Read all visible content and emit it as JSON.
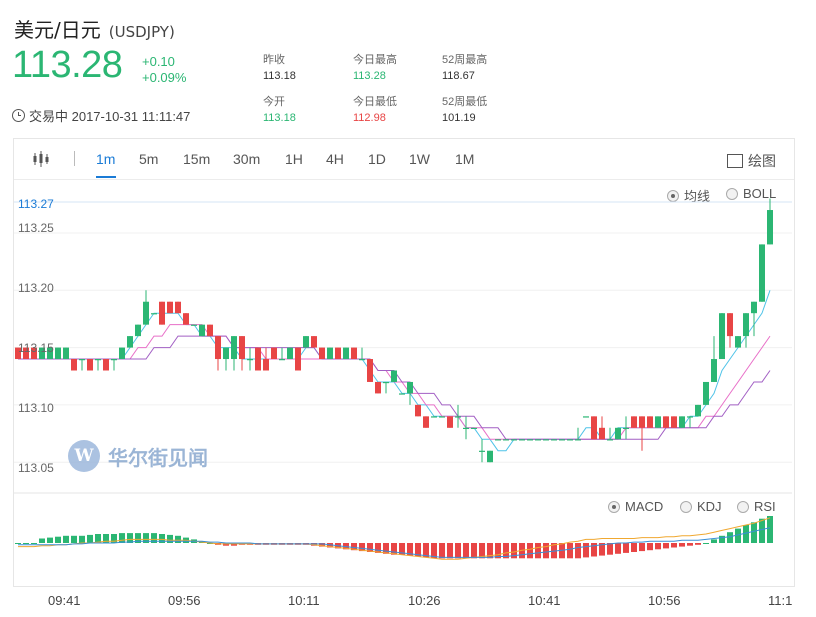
{
  "header": {
    "title": "美元/日元",
    "code": "(USDJPY)",
    "price": "113.28",
    "change": "+0.10",
    "change_pct": "+0.09%",
    "status": "交易中 2017-10-31 11:11:47"
  },
  "stats": [
    {
      "label": "昨收",
      "value": "113.18"
    },
    {
      "label": "今日最高",
      "value": "113.28"
    },
    {
      "label": "52周最高",
      "value": "118.67"
    },
    {
      "label": "今开",
      "value": "113.18"
    },
    {
      "label": "今日最低",
      "value": "112.98"
    },
    {
      "label": "52周最低",
      "value": "101.19"
    }
  ],
  "toolbar": {
    "tabs": [
      "1m",
      "5m",
      "15m",
      "30m",
      "1H",
      "4H",
      "1D",
      "1W",
      "1M"
    ],
    "active_tab": "1m",
    "draw_label": "绘图"
  },
  "indicators": {
    "main": [
      {
        "label": "均线",
        "selected": true
      },
      {
        "label": "BOLL",
        "selected": false
      }
    ],
    "sub": [
      {
        "label": "MACD",
        "selected": true
      },
      {
        "label": "KDJ",
        "selected": false
      },
      {
        "label": "RSI",
        "selected": false
      }
    ]
  },
  "watermark": {
    "logo_text": "W",
    "text": "华尔街见闻"
  },
  "colors": {
    "up": "#2bb673",
    "down": "#e84545",
    "accent": "#1a7bd6",
    "ma1": "#4fc3e8",
    "ma2": "#e86fc8",
    "ma3": "#a25fc4"
  },
  "chart_data": {
    "type": "candlestick",
    "current_price_label": "113.27",
    "y_ticks": [
      "113.25",
      "113.20",
      "113.15",
      "113.10",
      "113.05"
    ],
    "y_tick_values": [
      113.25,
      113.2,
      113.15,
      113.1,
      113.05
    ],
    "ylim": [
      113.024,
      113.277
    ],
    "x_ticks": [
      "09:41",
      "09:56",
      "10:11",
      "10:26",
      "10:41",
      "10:56",
      "11:1"
    ],
    "candles": [
      [
        113.15,
        113.15,
        113.14,
        113.14
      ],
      [
        113.15,
        113.15,
        113.14,
        113.14
      ],
      [
        113.15,
        113.15,
        113.14,
        113.14
      ],
      [
        113.14,
        113.15,
        113.14,
        113.15
      ],
      [
        113.14,
        113.15,
        113.14,
        113.15
      ],
      [
        113.14,
        113.15,
        113.14,
        113.15
      ],
      [
        113.14,
        113.15,
        113.14,
        113.15
      ],
      [
        113.14,
        113.14,
        113.13,
        113.13
      ],
      [
        113.14,
        113.14,
        113.13,
        113.14
      ],
      [
        113.14,
        113.14,
        113.13,
        113.13
      ],
      [
        113.14,
        113.14,
        113.13,
        113.14
      ],
      [
        113.14,
        113.14,
        113.13,
        113.13
      ],
      [
        113.14,
        113.14,
        113.13,
        113.14
      ],
      [
        113.14,
        113.15,
        113.14,
        113.15
      ],
      [
        113.15,
        113.16,
        113.15,
        113.16
      ],
      [
        113.16,
        113.17,
        113.16,
        113.17
      ],
      [
        113.17,
        113.2,
        113.17,
        113.19
      ],
      [
        113.18,
        113.18,
        113.18,
        113.18
      ],
      [
        113.19,
        113.19,
        113.17,
        113.17
      ],
      [
        113.19,
        113.19,
        113.18,
        113.18
      ],
      [
        113.19,
        113.19,
        113.18,
        113.18
      ],
      [
        113.18,
        113.18,
        113.17,
        113.17
      ],
      [
        113.17,
        113.17,
        113.17,
        113.17
      ],
      [
        113.16,
        113.17,
        113.16,
        113.17
      ],
      [
        113.17,
        113.17,
        113.16,
        113.16
      ],
      [
        113.16,
        113.16,
        113.13,
        113.14
      ],
      [
        113.14,
        113.15,
        113.13,
        113.15
      ],
      [
        113.14,
        113.16,
        113.13,
        113.16
      ],
      [
        113.16,
        113.16,
        113.13,
        113.14
      ],
      [
        113.14,
        113.15,
        113.13,
        113.14
      ],
      [
        113.15,
        113.15,
        113.13,
        113.13
      ],
      [
        113.14,
        113.15,
        113.13,
        113.13
      ],
      [
        113.15,
        113.15,
        113.14,
        113.14
      ],
      [
        113.14,
        113.15,
        113.14,
        113.14
      ],
      [
        113.14,
        113.15,
        113.14,
        113.15
      ],
      [
        113.15,
        113.15,
        113.13,
        113.13
      ],
      [
        113.15,
        113.16,
        113.15,
        113.16
      ],
      [
        113.16,
        113.16,
        113.15,
        113.15
      ],
      [
        113.15,
        113.15,
        113.14,
        113.14
      ],
      [
        113.14,
        113.15,
        113.14,
        113.15
      ],
      [
        113.15,
        113.15,
        113.14,
        113.14
      ],
      [
        113.14,
        113.15,
        113.14,
        113.15
      ],
      [
        113.15,
        113.15,
        113.14,
        113.14
      ],
      [
        113.14,
        113.15,
        113.14,
        113.14
      ],
      [
        113.14,
        113.14,
        113.12,
        113.12
      ],
      [
        113.12,
        113.12,
        113.11,
        113.11
      ],
      [
        113.12,
        113.12,
        113.11,
        113.12
      ],
      [
        113.12,
        113.13,
        113.12,
        113.13
      ],
      [
        113.11,
        113.11,
        113.11,
        113.11
      ],
      [
        113.11,
        113.12,
        113.1,
        113.12
      ],
      [
        113.1,
        113.1,
        113.09,
        113.09
      ],
      [
        113.09,
        113.09,
        113.08,
        113.08
      ],
      [
        113.09,
        113.09,
        113.09,
        113.09
      ],
      [
        113.09,
        113.09,
        113.09,
        113.09
      ],
      [
        113.09,
        113.09,
        113.08,
        113.08
      ],
      [
        113.09,
        113.1,
        113.08,
        113.09
      ],
      [
        113.08,
        113.09,
        113.07,
        113.08
      ],
      [
        113.08,
        113.08,
        113.08,
        113.08
      ],
      [
        113.06,
        113.07,
        113.05,
        113.06
      ],
      [
        113.05,
        113.06,
        113.05,
        113.06
      ],
      [
        113.07,
        113.07,
        113.07,
        113.07
      ],
      [
        113.07,
        113.07,
        113.07,
        113.07
      ],
      [
        113.07,
        113.07,
        113.07,
        113.07
      ],
      [
        113.07,
        113.07,
        113.07,
        113.07
      ],
      [
        113.07,
        113.07,
        113.07,
        113.07
      ],
      [
        113.07,
        113.07,
        113.07,
        113.07
      ],
      [
        113.07,
        113.07,
        113.07,
        113.07
      ],
      [
        113.07,
        113.07,
        113.07,
        113.07
      ],
      [
        113.07,
        113.07,
        113.07,
        113.07
      ],
      [
        113.07,
        113.07,
        113.07,
        113.07
      ],
      [
        113.07,
        113.08,
        113.07,
        113.07
      ],
      [
        113.09,
        113.09,
        113.09,
        113.09
      ],
      [
        113.09,
        113.09,
        113.07,
        113.07
      ],
      [
        113.08,
        113.09,
        113.07,
        113.07
      ],
      [
        113.07,
        113.08,
        113.07,
        113.07
      ],
      [
        113.07,
        113.08,
        113.07,
        113.08
      ],
      [
        113.08,
        113.09,
        113.07,
        113.08
      ],
      [
        113.09,
        113.09,
        113.08,
        113.08
      ],
      [
        113.09,
        113.09,
        113.06,
        113.08
      ],
      [
        113.09,
        113.09,
        113.08,
        113.08
      ],
      [
        113.08,
        113.09,
        113.08,
        113.09
      ],
      [
        113.09,
        113.09,
        113.08,
        113.08
      ],
      [
        113.09,
        113.09,
        113.08,
        113.08
      ],
      [
        113.08,
        113.09,
        113.08,
        113.09
      ],
      [
        113.09,
        113.09,
        113.08,
        113.09
      ],
      [
        113.09,
        113.1,
        113.09,
        113.1
      ],
      [
        113.1,
        113.12,
        113.1,
        113.12
      ],
      [
        113.12,
        113.16,
        113.12,
        113.14
      ],
      [
        113.14,
        113.18,
        113.14,
        113.18
      ],
      [
        113.18,
        113.18,
        113.15,
        113.16
      ],
      [
        113.15,
        113.16,
        113.15,
        113.16
      ],
      [
        113.16,
        113.18,
        113.15,
        113.18
      ],
      [
        113.18,
        113.19,
        113.16,
        113.19
      ],
      [
        113.19,
        113.24,
        113.19,
        113.24
      ],
      [
        113.24,
        113.28,
        113.24,
        113.27
      ]
    ],
    "ma": [
      {
        "color": "#4fc3e8",
        "values": [
          113.14,
          113.14,
          113.14,
          113.14,
          113.14,
          113.14,
          113.14,
          113.14,
          113.14,
          113.14,
          113.14,
          113.14,
          113.14,
          113.14,
          113.15,
          113.16,
          113.17,
          113.18,
          113.18,
          113.18,
          113.18,
          113.17,
          113.17,
          113.16,
          113.16,
          113.15,
          113.15,
          113.15,
          113.14,
          113.14,
          113.14,
          113.14,
          113.14,
          113.14,
          113.14,
          113.14,
          113.15,
          113.15,
          113.14,
          113.14,
          113.14,
          113.14,
          113.14,
          113.14,
          113.13,
          113.12,
          113.12,
          113.12,
          113.11,
          113.11,
          113.1,
          113.1,
          113.09,
          113.09,
          113.09,
          113.09,
          113.08,
          113.08,
          113.07,
          113.07,
          113.06,
          113.06,
          113.07,
          113.07,
          113.07,
          113.07,
          113.07,
          113.07,
          113.07,
          113.07,
          113.07,
          113.08,
          113.08,
          113.07,
          113.07,
          113.08,
          113.08,
          113.08,
          113.08,
          113.08,
          113.08,
          113.08,
          113.08,
          113.08,
          113.09,
          113.09,
          113.1,
          113.11,
          113.13,
          113.14,
          113.15,
          113.16,
          113.17,
          113.18,
          113.2
        ]
      },
      {
        "color": "#e86fc8",
        "values": [
          113.14,
          113.14,
          113.14,
          113.14,
          113.14,
          113.14,
          113.14,
          113.14,
          113.14,
          113.14,
          113.14,
          113.14,
          113.14,
          113.14,
          113.14,
          113.15,
          113.15,
          113.16,
          113.16,
          113.17,
          113.17,
          113.17,
          113.17,
          113.17,
          113.16,
          113.16,
          113.16,
          113.15,
          113.15,
          113.15,
          113.15,
          113.14,
          113.14,
          113.14,
          113.14,
          113.14,
          113.14,
          113.14,
          113.14,
          113.14,
          113.14,
          113.14,
          113.14,
          113.14,
          113.14,
          113.13,
          113.13,
          113.12,
          113.12,
          113.11,
          113.11,
          113.1,
          113.1,
          113.09,
          113.09,
          113.09,
          113.08,
          113.08,
          113.08,
          113.07,
          113.07,
          113.07,
          113.07,
          113.07,
          113.07,
          113.07,
          113.07,
          113.07,
          113.07,
          113.07,
          113.07,
          113.07,
          113.07,
          113.07,
          113.07,
          113.07,
          113.08,
          113.08,
          113.08,
          113.08,
          113.08,
          113.08,
          113.08,
          113.08,
          113.08,
          113.08,
          113.09,
          113.09,
          113.1,
          113.11,
          113.12,
          113.13,
          113.14,
          113.15,
          113.16
        ]
      },
      {
        "color": "#a25fc4",
        "values": [
          113.14,
          113.14,
          113.14,
          113.14,
          113.14,
          113.14,
          113.14,
          113.14,
          113.14,
          113.14,
          113.14,
          113.14,
          113.14,
          113.14,
          113.14,
          113.14,
          113.14,
          113.15,
          113.15,
          113.15,
          113.16,
          113.16,
          113.16,
          113.16,
          113.16,
          113.16,
          113.16,
          113.15,
          113.15,
          113.15,
          113.15,
          113.15,
          113.15,
          113.15,
          113.15,
          113.15,
          113.15,
          113.15,
          113.14,
          113.14,
          113.14,
          113.14,
          113.14,
          113.14,
          113.14,
          113.13,
          113.13,
          113.13,
          113.12,
          113.12,
          113.11,
          113.11,
          113.11,
          113.1,
          113.1,
          113.09,
          113.09,
          113.09,
          113.08,
          113.08,
          113.08,
          113.07,
          113.07,
          113.07,
          113.07,
          113.07,
          113.07,
          113.07,
          113.07,
          113.07,
          113.07,
          113.07,
          113.07,
          113.07,
          113.07,
          113.07,
          113.07,
          113.07,
          113.07,
          113.07,
          113.07,
          113.08,
          113.08,
          113.08,
          113.08,
          113.08,
          113.08,
          113.09,
          113.09,
          113.1,
          113.1,
          113.11,
          113.12,
          113.12,
          113.13
        ]
      }
    ],
    "macd": {
      "hist": [
        0,
        0,
        0,
        0.005,
        0.006,
        0.007,
        0.008,
        0.008,
        0.008,
        0.009,
        0.01,
        0.01,
        0.01,
        0.011,
        0.011,
        0.011,
        0.011,
        0.011,
        0.01,
        0.009,
        0.008,
        0.006,
        0.004,
        0.002,
        0,
        -0.002,
        -0.003,
        -0.003,
        -0.002,
        -0.002,
        -0.002,
        -0.002,
        -0.002,
        -0.002,
        -0.002,
        -0.002,
        -0.002,
        -0.003,
        -0.004,
        -0.005,
        -0.006,
        -0.007,
        -0.008,
        -0.009,
        -0.01,
        -0.011,
        -0.012,
        -0.013,
        -0.013,
        -0.014,
        -0.015,
        -0.016,
        -0.017,
        -0.017,
        -0.017,
        -0.017,
        -0.017,
        -0.017,
        -0.017,
        -0.017,
        -0.017,
        -0.017,
        -0.017,
        -0.017,
        -0.017,
        -0.017,
        -0.017,
        -0.017,
        -0.017,
        -0.017,
        -0.017,
        -0.016,
        -0.015,
        -0.014,
        -0.013,
        -0.012,
        -0.011,
        -0.01,
        -0.009,
        -0.008,
        -0.007,
        -0.006,
        -0.005,
        -0.004,
        -0.003,
        -0.002,
        0,
        0.004,
        0.008,
        0.012,
        0.016,
        0.02,
        0.023,
        0.027,
        0.03
      ],
      "dif": [
        -0.004,
        -0.004,
        -0.004,
        -0.003,
        -0.003,
        -0.002,
        -0.002,
        -0.001,
        0,
        0,
        0.001,
        0.002,
        0.002,
        0.003,
        0.004,
        0.004,
        0.004,
        0.004,
        0.004,
        0.003,
        0.003,
        0.003,
        0.002,
        0.001,
        0,
        -0.001,
        -0.001,
        -0.001,
        -0.001,
        -0.001,
        -0.001,
        -0.001,
        -0.001,
        -0.001,
        -0.001,
        -0.001,
        -0.001,
        -0.002,
        -0.003,
        -0.004,
        -0.005,
        -0.006,
        -0.007,
        -0.008,
        -0.009,
        -0.01,
        -0.011,
        -0.012,
        -0.013,
        -0.014,
        -0.015,
        -0.016,
        -0.017,
        -0.018,
        -0.018,
        -0.018,
        -0.017,
        -0.016,
        -0.015,
        -0.014,
        -0.013,
        -0.011,
        -0.01,
        -0.008,
        -0.007,
        -0.005,
        -0.004,
        -0.002,
        -0.001,
        0.001,
        0.002,
        0.004,
        0.004,
        0.005,
        0.005,
        0.005,
        0.005,
        0.005,
        0.006,
        0.006,
        0.006,
        0.007,
        0.007,
        0.008,
        0.008,
        0.009,
        0.01,
        0.012,
        0.014,
        0.016,
        0.018,
        0.02,
        0.022,
        0.025,
        0.028
      ],
      "dea": [
        -0.002,
        -0.002,
        -0.002,
        -0.002,
        -0.002,
        -0.002,
        -0.002,
        -0.001,
        -0.001,
        0,
        0,
        0,
        0,
        0.001,
        0.001,
        0.002,
        0.002,
        0.002,
        0.002,
        0.002,
        0.002,
        0.002,
        0.002,
        0.002,
        0.001,
        0.001,
        0,
        0,
        0,
        0,
        -0.001,
        -0.001,
        -0.001,
        -0.001,
        -0.001,
        -0.001,
        -0.001,
        -0.001,
        -0.001,
        -0.002,
        -0.003,
        -0.004,
        -0.005,
        -0.006,
        -0.007,
        -0.008,
        -0.009,
        -0.01,
        -0.011,
        -0.012,
        -0.013,
        -0.014,
        -0.015,
        -0.016,
        -0.016,
        -0.016,
        -0.016,
        -0.016,
        -0.016,
        -0.016,
        -0.015,
        -0.015,
        -0.014,
        -0.013,
        -0.012,
        -0.011,
        -0.01,
        -0.009,
        -0.008,
        -0.007,
        -0.005,
        -0.004,
        -0.003,
        -0.002,
        -0.001,
        0,
        0,
        0.001,
        0.001,
        0.002,
        0.002,
        0.002,
        0.002,
        0.003,
        0.003,
        0.003,
        0.004,
        0.005,
        0.006,
        0.007,
        0.009,
        0.011,
        0.013,
        0.015,
        0.017
      ]
    }
  }
}
